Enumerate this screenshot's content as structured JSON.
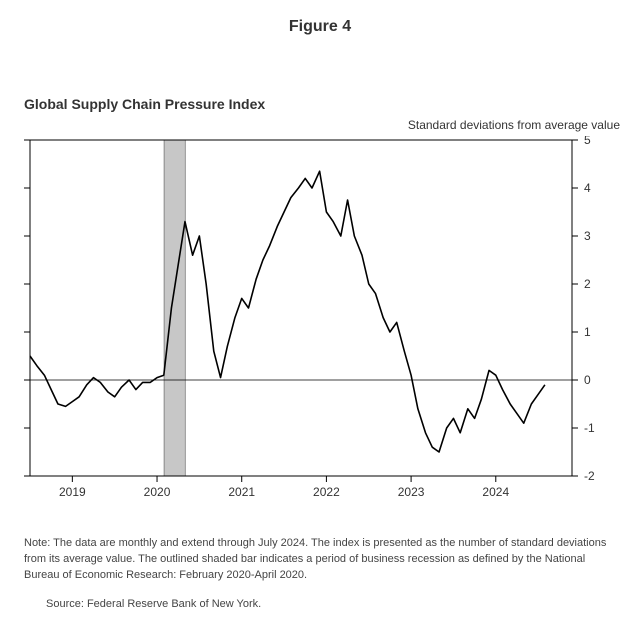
{
  "figure_label": "Figure 4",
  "chart": {
    "type": "line",
    "title": "Global Supply Chain Pressure Index",
    "y_axis_title": "Standard deviations from average value",
    "background_color": "#ffffff",
    "line_color": "#000000",
    "line_width": 1.6,
    "axis_color": "#000000",
    "tick_length": 6,
    "recession_fill": "#c7c7c7",
    "recession_range": [
      2020.083,
      2020.333
    ],
    "xlim": [
      2018.5,
      2024.9
    ],
    "ylim": [
      -2,
      5
    ],
    "y_ticks": [
      -2,
      -1,
      0,
      1,
      2,
      3,
      4,
      5
    ],
    "x_ticks": [
      2019,
      2020,
      2021,
      2022,
      2023,
      2024
    ],
    "x_tick_labels": [
      "2019",
      "2020",
      "2021",
      "2022",
      "2023",
      "2024"
    ],
    "zero_line": true,
    "title_fontsize": 14,
    "tick_fontsize": 12,
    "series": [
      {
        "x": 2018.5,
        "y": 0.5
      },
      {
        "x": 2018.58,
        "y": 0.3
      },
      {
        "x": 2018.67,
        "y": 0.1
      },
      {
        "x": 2018.75,
        "y": -0.2
      },
      {
        "x": 2018.83,
        "y": -0.5
      },
      {
        "x": 2018.92,
        "y": -0.55
      },
      {
        "x": 2019.0,
        "y": -0.45
      },
      {
        "x": 2019.08,
        "y": -0.35
      },
      {
        "x": 2019.17,
        "y": -0.1
      },
      {
        "x": 2019.25,
        "y": 0.05
      },
      {
        "x": 2019.33,
        "y": -0.05
      },
      {
        "x": 2019.42,
        "y": -0.25
      },
      {
        "x": 2019.5,
        "y": -0.35
      },
      {
        "x": 2019.58,
        "y": -0.15
      },
      {
        "x": 2019.67,
        "y": 0.0
      },
      {
        "x": 2019.75,
        "y": -0.2
      },
      {
        "x": 2019.83,
        "y": -0.05
      },
      {
        "x": 2019.92,
        "y": -0.05
      },
      {
        "x": 2020.0,
        "y": 0.05
      },
      {
        "x": 2020.08,
        "y": 0.1
      },
      {
        "x": 2020.17,
        "y": 1.5
      },
      {
        "x": 2020.25,
        "y": 2.4
      },
      {
        "x": 2020.33,
        "y": 3.3
      },
      {
        "x": 2020.42,
        "y": 2.6
      },
      {
        "x": 2020.5,
        "y": 3.0
      },
      {
        "x": 2020.58,
        "y": 2.0
      },
      {
        "x": 2020.67,
        "y": 0.6
      },
      {
        "x": 2020.75,
        "y": 0.05
      },
      {
        "x": 2020.83,
        "y": 0.7
      },
      {
        "x": 2020.92,
        "y": 1.3
      },
      {
        "x": 2021.0,
        "y": 1.7
      },
      {
        "x": 2021.08,
        "y": 1.5
      },
      {
        "x": 2021.17,
        "y": 2.1
      },
      {
        "x": 2021.25,
        "y": 2.5
      },
      {
        "x": 2021.33,
        "y": 2.8
      },
      {
        "x": 2021.42,
        "y": 3.2
      },
      {
        "x": 2021.5,
        "y": 3.5
      },
      {
        "x": 2021.58,
        "y": 3.8
      },
      {
        "x": 2021.67,
        "y": 4.0
      },
      {
        "x": 2021.75,
        "y": 4.2
      },
      {
        "x": 2021.83,
        "y": 4.0
      },
      {
        "x": 2021.92,
        "y": 4.35
      },
      {
        "x": 2022.0,
        "y": 3.5
      },
      {
        "x": 2022.08,
        "y": 3.3
      },
      {
        "x": 2022.17,
        "y": 3.0
      },
      {
        "x": 2022.25,
        "y": 3.75
      },
      {
        "x": 2022.33,
        "y": 3.0
      },
      {
        "x": 2022.42,
        "y": 2.6
      },
      {
        "x": 2022.5,
        "y": 2.0
      },
      {
        "x": 2022.58,
        "y": 1.8
      },
      {
        "x": 2022.67,
        "y": 1.3
      },
      {
        "x": 2022.75,
        "y": 1.0
      },
      {
        "x": 2022.83,
        "y": 1.2
      },
      {
        "x": 2022.92,
        "y": 0.6
      },
      {
        "x": 2023.0,
        "y": 0.1
      },
      {
        "x": 2023.08,
        "y": -0.6
      },
      {
        "x": 2023.17,
        "y": -1.1
      },
      {
        "x": 2023.25,
        "y": -1.4
      },
      {
        "x": 2023.33,
        "y": -1.5
      },
      {
        "x": 2023.42,
        "y": -1.0
      },
      {
        "x": 2023.5,
        "y": -0.8
      },
      {
        "x": 2023.58,
        "y": -1.1
      },
      {
        "x": 2023.67,
        "y": -0.6
      },
      {
        "x": 2023.75,
        "y": -0.8
      },
      {
        "x": 2023.83,
        "y": -0.4
      },
      {
        "x": 2023.92,
        "y": 0.2
      },
      {
        "x": 2024.0,
        "y": 0.1
      },
      {
        "x": 2024.08,
        "y": -0.2
      },
      {
        "x": 2024.17,
        "y": -0.5
      },
      {
        "x": 2024.25,
        "y": -0.7
      },
      {
        "x": 2024.33,
        "y": -0.9
      },
      {
        "x": 2024.42,
        "y": -0.5
      },
      {
        "x": 2024.5,
        "y": -0.3
      },
      {
        "x": 2024.58,
        "y": -0.1
      }
    ]
  },
  "note_text": "Note: The data are monthly and extend through July 2024. The index is presented as the number of standard deviations from its average value. The outlined shaded bar indicates a period of business recession as defined by the National Bureau of Economic Research: February 2020-April 2020.",
  "source_text": "Source: Federal Reserve Bank of New York."
}
